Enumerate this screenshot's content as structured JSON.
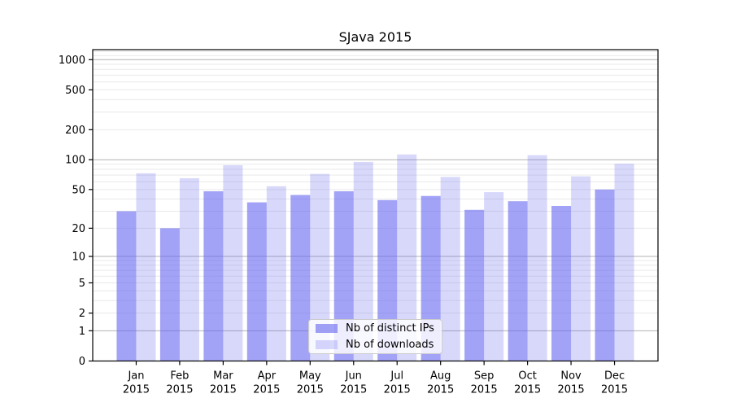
{
  "chart_data": {
    "type": "bar",
    "title": "SJava 2015",
    "categories": [
      "Jan",
      "Feb",
      "Mar",
      "Apr",
      "May",
      "Jun",
      "Jul",
      "Aug",
      "Sep",
      "Oct",
      "Nov",
      "Dec"
    ],
    "year_label": "2015",
    "series": [
      {
        "name": "Nb of distinct IPs",
        "alpha": 0.6,
        "values": [
          30,
          20,
          48,
          37,
          44,
          48,
          39,
          43,
          31,
          38,
          34,
          50
        ]
      },
      {
        "name": "Nb of downloads",
        "alpha": 0.25,
        "values": [
          73,
          65,
          88,
          54,
          72,
          95,
          113,
          67,
          47,
          111,
          68,
          91
        ]
      }
    ],
    "y_scale": "log1p",
    "y_ticks": [
      0,
      1,
      2,
      5,
      10,
      20,
      50,
      100,
      200,
      500,
      1000
    ],
    "grid": true,
    "grid_major_values": [
      1,
      10,
      100,
      1000
    ],
    "grid_minor_values": [
      2,
      3,
      4,
      5,
      6,
      7,
      8,
      9,
      20,
      30,
      40,
      50,
      60,
      70,
      80,
      90,
      200,
      300,
      400,
      500,
      600,
      700,
      800,
      900,
      1100,
      1200
    ],
    "legend_position": "lower center",
    "colors": {
      "bar_base": "#6464f0",
      "grid_major": "#b3b3b3",
      "grid_minor": "#e9e9e9",
      "axis": "#000000",
      "legend_border": "#cccccc"
    }
  }
}
